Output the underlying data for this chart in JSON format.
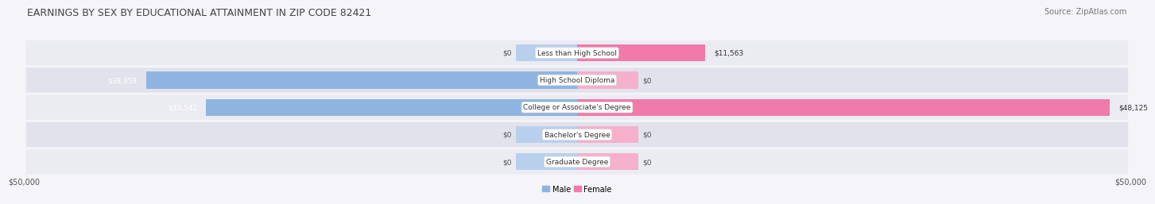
{
  "title": "Earnings by Sex by Educational Attainment in Zip Code 82421",
  "source": "Source: ZipAtlas.com",
  "categories": [
    "Less than High School",
    "High School Diploma",
    "College or Associate's Degree",
    "Bachelor's Degree",
    "Graduate Degree"
  ],
  "male_values": [
    0,
    38958,
    33542,
    0,
    0
  ],
  "female_values": [
    11563,
    0,
    48125,
    0,
    0
  ],
  "male_zero_stub": 5500,
  "female_zero_stub": 5500,
  "max_val": 50000,
  "male_color": "#90b4e0",
  "female_color": "#f07aaa",
  "male_stub_color": "#b8d0ee",
  "female_stub_color": "#f5b0cc",
  "row_colors": [
    "#ebebf2",
    "#e2e2ec",
    "#ebebf2",
    "#e2e2ec",
    "#ebebf2"
  ],
  "fig_bg": "#f4f4f9",
  "title_fontsize": 9,
  "source_fontsize": 7,
  "label_fontsize": 6.5,
  "value_fontsize": 6.5,
  "axis_fontsize": 7,
  "bar_height": 0.62,
  "legend_male": "Male",
  "legend_female": "Female"
}
